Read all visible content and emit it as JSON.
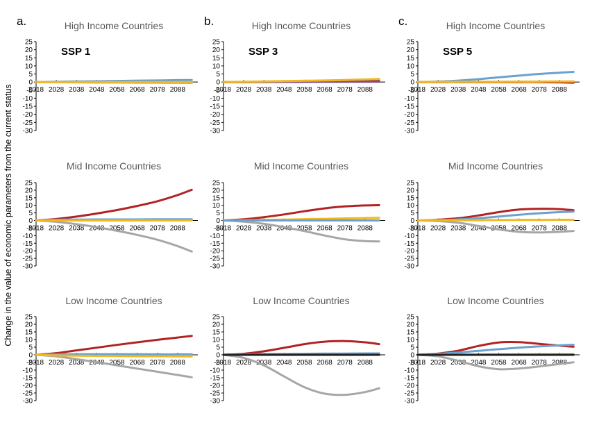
{
  "figure": {
    "ylabel": "Change in the value of  economic parameters from the current status"
  },
  "colors": {
    "red": "#b22222",
    "blue": "#6aa1cf",
    "gray": "#a6a6a6",
    "yellow": "#f2b81d",
    "purple": "#7f4a86",
    "black": "#222222",
    "axis": "#000000",
    "title": "#595959"
  },
  "chart_data": [
    {
      "type": "line",
      "panel_letter": "a.",
      "ssp_label": "SSP 1",
      "title": "High Income Countries",
      "ylim": [
        -30,
        25
      ],
      "xticks": [
        2018,
        2028,
        2038,
        2048,
        2058,
        2068,
        2078,
        2088
      ],
      "yticks": [
        25,
        20,
        15,
        10,
        5,
        0,
        -5,
        -10,
        -15,
        -20,
        -25,
        -30
      ],
      "series": [
        {
          "color": "blue",
          "x": [
            2018,
            2028,
            2038,
            2048,
            2058,
            2068,
            2078,
            2088,
            2095
          ],
          "y": [
            0,
            0.2,
            0.4,
            0.5,
            0.7,
            0.9,
            1.0,
            1.2,
            1.3
          ]
        },
        {
          "color": "gray",
          "x": [
            2018,
            2028,
            2038,
            2048,
            2058,
            2068,
            2078,
            2088,
            2095
          ],
          "y": [
            0,
            -0.1,
            -0.2,
            -0.3,
            -0.3,
            -0.4,
            -0.4,
            -0.5,
            -0.5
          ]
        },
        {
          "color": "yellow",
          "x": [
            2018,
            2028,
            2038,
            2048,
            2058,
            2068,
            2078,
            2088,
            2095
          ],
          "y": [
            0,
            0,
            0,
            0,
            0,
            0,
            0,
            0,
            0
          ]
        }
      ]
    },
    {
      "type": "line",
      "panel_letter": "b.",
      "ssp_label": "SSP 3",
      "title": "High Income Countries",
      "ylim": [
        -30,
        25
      ],
      "xticks": [
        2018,
        2028,
        2038,
        2048,
        2058,
        2068,
        2078,
        2088
      ],
      "yticks": [
        25,
        20,
        15,
        10,
        5,
        0,
        -5,
        -10,
        -15,
        -20,
        -25,
        -30
      ],
      "series": [
        {
          "color": "red",
          "x": [
            2018,
            2028,
            2038,
            2048,
            2058,
            2068,
            2078,
            2088,
            2095
          ],
          "y": [
            0,
            0.05,
            0.1,
            0.2,
            0.3,
            0.4,
            0.5,
            0.6,
            0.7
          ]
        },
        {
          "color": "purple",
          "x": [
            2018,
            2028,
            2038,
            2048,
            2058,
            2068,
            2078,
            2088,
            2095
          ],
          "y": [
            0,
            0,
            0.05,
            0.1,
            0.1,
            0.15,
            0.2,
            0.25,
            0.3
          ]
        },
        {
          "color": "yellow",
          "x": [
            2018,
            2028,
            2038,
            2048,
            2058,
            2068,
            2078,
            2088,
            2095
          ],
          "y": [
            0,
            0.2,
            0.4,
            0.6,
            0.8,
            1.0,
            1.3,
            1.6,
            1.9
          ]
        }
      ]
    },
    {
      "type": "line",
      "panel_letter": "c.",
      "ssp_label": "SSP 5",
      "title": "High Income Countries",
      "ylim": [
        -30,
        25
      ],
      "xticks": [
        2018,
        2028,
        2038,
        2048,
        2058,
        2068,
        2078,
        2088
      ],
      "yticks": [
        25,
        20,
        15,
        10,
        5,
        0,
        -5,
        -10,
        -15,
        -20,
        -25,
        -30
      ],
      "series": [
        {
          "color": "blue",
          "x": [
            2018,
            2028,
            2038,
            2048,
            2058,
            2068,
            2078,
            2088,
            2095
          ],
          "y": [
            0,
            0.3,
            0.9,
            1.8,
            2.9,
            4.0,
            5.0,
            5.8,
            6.3
          ]
        },
        {
          "color": "red",
          "x": [
            2018,
            2028,
            2038,
            2048,
            2058,
            2068,
            2078,
            2088,
            2095
          ],
          "y": [
            0,
            0,
            0,
            0,
            0,
            0,
            0,
            -0.2,
            -0.4
          ]
        },
        {
          "color": "yellow",
          "x": [
            2018,
            2028,
            2038,
            2048,
            2058,
            2068,
            2078,
            2088,
            2095
          ],
          "y": [
            0,
            0.1,
            0.1,
            0.2,
            0.2,
            0.3,
            0.3,
            0.4,
            0.4
          ]
        }
      ]
    },
    {
      "type": "line",
      "title": "Mid Income Countries",
      "ylim": [
        -30,
        25
      ],
      "xticks": [
        2018,
        2028,
        2038,
        2048,
        2058,
        2068,
        2078,
        2088
      ],
      "yticks": [
        25,
        20,
        15,
        10,
        5,
        0,
        -5,
        -10,
        -15,
        -20,
        -25,
        -30
      ],
      "series": [
        {
          "color": "red",
          "x": [
            2018,
            2028,
            2038,
            2048,
            2058,
            2068,
            2078,
            2088,
            2095
          ],
          "y": [
            0,
            1.0,
            2.6,
            4.6,
            6.9,
            9.6,
            12.7,
            16.8,
            20.3
          ]
        },
        {
          "color": "gray",
          "x": [
            2018,
            2028,
            2038,
            2048,
            2058,
            2068,
            2078,
            2088,
            2095
          ],
          "y": [
            0,
            -0.9,
            -2.4,
            -4.4,
            -6.8,
            -9.5,
            -12.7,
            -16.9,
            -20.5
          ]
        },
        {
          "color": "blue",
          "x": [
            2018,
            2028,
            2038,
            2048,
            2058,
            2068,
            2078,
            2088,
            2095
          ],
          "y": [
            0,
            0.5,
            0.6,
            0.7,
            0.7,
            0.7,
            0.8,
            0.8,
            0.8
          ]
        },
        {
          "color": "yellow",
          "x": [
            2018,
            2028,
            2038,
            2048,
            2058,
            2068,
            2078,
            2088,
            2095
          ],
          "y": [
            0,
            0,
            0,
            0,
            0,
            0,
            0,
            0,
            0
          ]
        }
      ]
    },
    {
      "type": "line",
      "title": "Mid Income Countries",
      "ylim": [
        -30,
        25
      ],
      "xticks": [
        2018,
        2028,
        2038,
        2048,
        2058,
        2068,
        2078,
        2088
      ],
      "yticks": [
        25,
        20,
        15,
        10,
        5,
        0,
        -5,
        -10,
        -15,
        -20,
        -25,
        -30
      ],
      "series": [
        {
          "color": "red",
          "x": [
            2018,
            2028,
            2038,
            2048,
            2058,
            2068,
            2078,
            2088,
            2095
          ],
          "y": [
            0,
            0.8,
            2.2,
            4.0,
            6.1,
            8.0,
            9.3,
            9.9,
            10.1
          ]
        },
        {
          "color": "gray",
          "x": [
            2018,
            2028,
            2038,
            2048,
            2058,
            2068,
            2078,
            2088,
            2095
          ],
          "y": [
            0,
            -0.8,
            -2.2,
            -4.4,
            -7.0,
            -9.9,
            -12.4,
            -13.6,
            -13.8
          ]
        },
        {
          "color": "yellow",
          "x": [
            2018,
            2028,
            2038,
            2048,
            2058,
            2068,
            2078,
            2088,
            2095
          ],
          "y": [
            0,
            0.2,
            0.4,
            0.6,
            0.9,
            1.1,
            1.4,
            1.6,
            1.8
          ]
        },
        {
          "color": "blue",
          "x": [
            2018,
            2028,
            2038,
            2048,
            2058,
            2068,
            2078,
            2088,
            2095
          ],
          "y": [
            0,
            0,
            0,
            0,
            0,
            0,
            0,
            0,
            0
          ]
        }
      ]
    },
    {
      "type": "line",
      "title": "Mid Income Countries",
      "ylim": [
        -30,
        25
      ],
      "xticks": [
        2018,
        2028,
        2038,
        2048,
        2058,
        2068,
        2078,
        2088
      ],
      "yticks": [
        25,
        20,
        15,
        10,
        5,
        0,
        -5,
        -10,
        -15,
        -20,
        -25,
        -30
      ],
      "series": [
        {
          "color": "red",
          "x": [
            2018,
            2028,
            2038,
            2048,
            2058,
            2068,
            2078,
            2088,
            2095
          ],
          "y": [
            0,
            0.5,
            1.5,
            3.3,
            5.5,
            7.2,
            7.7,
            7.5,
            6.8
          ]
        },
        {
          "color": "blue",
          "x": [
            2018,
            2028,
            2038,
            2048,
            2058,
            2068,
            2078,
            2088,
            2095
          ],
          "y": [
            0,
            0.2,
            0.7,
            1.5,
            2.6,
            3.8,
            4.8,
            5.5,
            5.9
          ]
        },
        {
          "color": "gray",
          "x": [
            2018,
            2028,
            2038,
            2048,
            2058,
            2068,
            2078,
            2088,
            2095
          ],
          "y": [
            0,
            -0.4,
            -1.5,
            -3.6,
            -5.9,
            -7.5,
            -7.9,
            -7.5,
            -6.9
          ]
        },
        {
          "color": "yellow",
          "x": [
            2018,
            2028,
            2038,
            2048,
            2058,
            2068,
            2078,
            2088,
            2095
          ],
          "y": [
            0,
            0.1,
            0.2,
            0.2,
            0.3,
            0.4,
            0.4,
            0.5,
            0.5
          ]
        }
      ]
    },
    {
      "type": "line",
      "title": "Low Income Countries",
      "ylim": [
        -30,
        25
      ],
      "xticks": [
        2018,
        2028,
        2038,
        2048,
        2058,
        2068,
        2078,
        2088
      ],
      "yticks": [
        25,
        20,
        15,
        10,
        5,
        0,
        -5,
        -10,
        -15,
        -20,
        -25,
        -30
      ],
      "series": [
        {
          "color": "red",
          "x": [
            2018,
            2028,
            2038,
            2048,
            2058,
            2068,
            2078,
            2088,
            2095
          ],
          "y": [
            0,
            1.1,
            2.9,
            4.7,
            6.5,
            8.2,
            9.8,
            11.3,
            12.4
          ]
        },
        {
          "color": "gray",
          "x": [
            2018,
            2028,
            2038,
            2048,
            2058,
            2068,
            2078,
            2088,
            2095
          ],
          "y": [
            0,
            -1.0,
            -2.8,
            -4.8,
            -6.9,
            -9.0,
            -11.1,
            -13.2,
            -14.7
          ]
        },
        {
          "color": "blue",
          "x": [
            2018,
            2028,
            2038,
            2048,
            2058,
            2068,
            2078,
            2088,
            2095
          ],
          "y": [
            0,
            0.3,
            0.4,
            0.4,
            0.4,
            0.4,
            0.3,
            0.3,
            0.3
          ]
        },
        {
          "color": "yellow",
          "x": [
            2018,
            2028,
            2038,
            2048,
            2058,
            2068,
            2078,
            2088,
            2095
          ],
          "y": [
            0,
            -0.4,
            -0.6,
            -0.7,
            -0.8,
            -0.9,
            -0.9,
            -1.0,
            -1.0
          ]
        }
      ]
    },
    {
      "type": "line",
      "title": "Low Income Countries",
      "ylim": [
        -30,
        25
      ],
      "xticks": [
        2018,
        2028,
        2038,
        2048,
        2058,
        2068,
        2078,
        2088
      ],
      "yticks": [
        25,
        20,
        15,
        10,
        5,
        0,
        -5,
        -10,
        -15,
        -20,
        -25,
        -30
      ],
      "series": [
        {
          "color": "red",
          "x": [
            2018,
            2028,
            2038,
            2048,
            2058,
            2068,
            2078,
            2088,
            2095
          ],
          "y": [
            0,
            0.7,
            2.3,
            4.6,
            7.0,
            8.6,
            9.0,
            8.2,
            7.0
          ]
        },
        {
          "color": "gray",
          "x": [
            2018,
            2028,
            2038,
            2048,
            2058,
            2068,
            2078,
            2088,
            2095
          ],
          "y": [
            0,
            -2.0,
            -6.9,
            -14.2,
            -21.2,
            -25.4,
            -26.2,
            -24.4,
            -21.9
          ]
        },
        {
          "color": "blue",
          "x": [
            2018,
            2028,
            2038,
            2048,
            2058,
            2068,
            2078,
            2088,
            2095
          ],
          "y": [
            0,
            0.3,
            0.5,
            0.6,
            0.7,
            0.8,
            0.8,
            0.9,
            0.9
          ]
        },
        {
          "color": "black",
          "x": [
            2018,
            2028,
            2038,
            2048,
            2058,
            2068,
            2078,
            2088,
            2095
          ],
          "y": [
            0,
            0,
            0,
            0,
            0,
            0,
            0,
            0,
            0
          ]
        }
      ]
    },
    {
      "type": "line",
      "title": "Low Income Countries",
      "ylim": [
        -30,
        25
      ],
      "xticks": [
        2018,
        2028,
        2038,
        2048,
        2058,
        2068,
        2078,
        2088
      ],
      "yticks": [
        25,
        20,
        15,
        10,
        5,
        0,
        -5,
        -10,
        -15,
        -20,
        -25,
        -30
      ],
      "series": [
        {
          "color": "red",
          "x": [
            2018,
            2028,
            2038,
            2048,
            2058,
            2068,
            2078,
            2088,
            2095
          ],
          "y": [
            0,
            0.8,
            2.7,
            5.8,
            8.1,
            8.3,
            7.2,
            6.0,
            5.3
          ]
        },
        {
          "color": "blue",
          "x": [
            2018,
            2028,
            2038,
            2048,
            2058,
            2068,
            2078,
            2088,
            2095
          ],
          "y": [
            0,
            0.6,
            1.5,
            2.6,
            3.7,
            4.7,
            5.5,
            6.2,
            6.6
          ]
        },
        {
          "color": "gray",
          "x": [
            2018,
            2028,
            2038,
            2048,
            2058,
            2068,
            2078,
            2088,
            2095
          ],
          "y": [
            0,
            -1.0,
            -3.9,
            -7.5,
            -9.4,
            -9.0,
            -7.6,
            -6.0,
            -4.9
          ]
        },
        {
          "color": "yellow",
          "x": [
            2018,
            2028,
            2038,
            2048,
            2058,
            2068,
            2078,
            2088,
            2095
          ],
          "y": [
            0,
            0.1,
            0.2,
            0.2,
            0.3,
            0.3,
            0.4,
            0.4,
            0.4
          ]
        },
        {
          "color": "black",
          "x": [
            2018,
            2028,
            2038,
            2048,
            2058,
            2068,
            2078,
            2088,
            2095
          ],
          "y": [
            0,
            0,
            0,
            0,
            0,
            0,
            0,
            0,
            0
          ]
        }
      ]
    }
  ]
}
